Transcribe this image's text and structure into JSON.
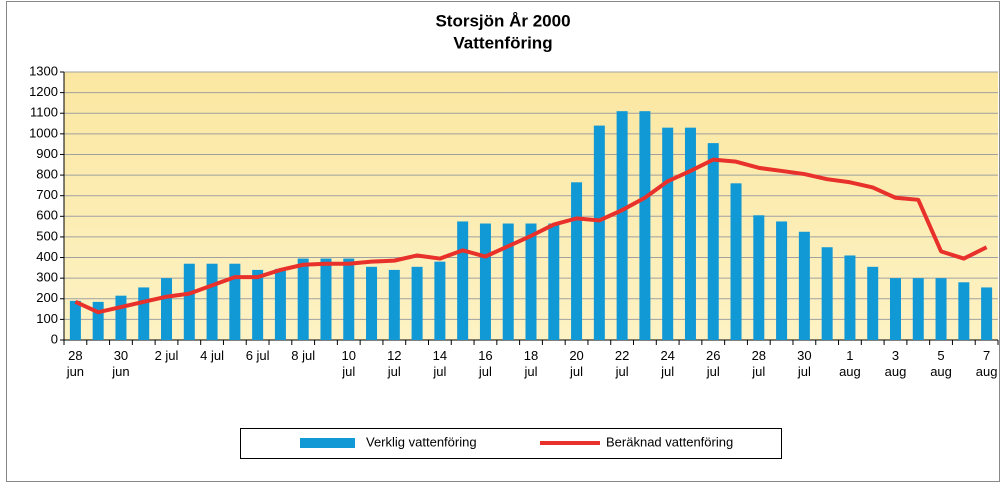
{
  "chart_data": {
    "type": "bar_line",
    "title": "Storsjön År 2000",
    "subtitle": "Vattenföring",
    "categories": [
      "28 jun",
      null,
      "30 jun",
      null,
      "2 jul",
      null,
      "4 jul",
      null,
      "6 jul",
      null,
      "8 jul",
      null,
      "10 jul",
      null,
      "12 jul",
      null,
      "14 jul",
      null,
      "16 jul",
      null,
      "18 jul",
      null,
      "20 jul",
      null,
      "22 jul",
      null,
      "24 jul",
      null,
      "26 jul",
      null,
      "28 jul",
      null,
      "30 jul",
      null,
      "1 aug",
      null,
      "3 aug",
      null,
      "5 aug",
      null,
      "7 aug"
    ],
    "series": [
      {
        "name": "Verklig vattenföring",
        "type": "bar",
        "color": "#1199d6",
        "values": [
          190,
          185,
          215,
          255,
          300,
          370,
          370,
          370,
          340,
          345,
          395,
          395,
          395,
          355,
          340,
          355,
          380,
          575,
          565,
          565,
          565,
          565,
          765,
          1040,
          1110,
          1110,
          1030,
          1030,
          955,
          760,
          605,
          575,
          525,
          450,
          410,
          355,
          300,
          300,
          300,
          280,
          255
        ]
      },
      {
        "name": "Beräknad vattenföring",
        "type": "line",
        "color": "#e8312a",
        "values": [
          185,
          135,
          160,
          185,
          210,
          225,
          265,
          305,
          305,
          340,
          365,
          370,
          370,
          380,
          385,
          410,
          395,
          435,
          405,
          455,
          505,
          560,
          590,
          580,
          630,
          690,
          770,
          820,
          875,
          865,
          835,
          820,
          805,
          780,
          765,
          740,
          690,
          680,
          430,
          395,
          450
        ]
      }
    ],
    "ylim": [
      0,
      1300
    ],
    "yticks": [
      0,
      100,
      200,
      300,
      400,
      500,
      600,
      700,
      800,
      900,
      1000,
      1100,
      1200,
      1300
    ],
    "grid": true,
    "legend": "bottom"
  }
}
